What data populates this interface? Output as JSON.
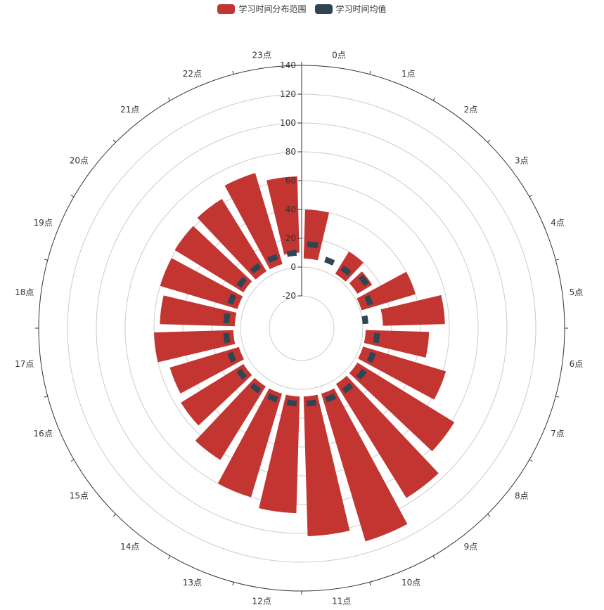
{
  "chart_data": {
    "type": "bar",
    "coordinate_system": "polar",
    "legend_position": "top-center",
    "categories": [
      "0点",
      "1点",
      "2点",
      "3点",
      "4点",
      "5点",
      "6点",
      "7点",
      "8点",
      "9点",
      "10点",
      "11点",
      "12点",
      "13点",
      "14点",
      "15点",
      "16点",
      "17点",
      "18点",
      "19点",
      "20点",
      "21点",
      "22点",
      "23点"
    ],
    "radius_axis": {
      "min": -20,
      "max": 140,
      "ticks": [
        -20,
        0,
        20,
        40,
        60,
        80,
        100,
        120,
        140
      ]
    },
    "series": [
      {
        "name": "学习时间分布范围",
        "color": "#c23531",
        "values": [
          [
            6,
            40
          ],
          [
            5,
            5
          ],
          [
            2,
            20
          ],
          [
            3,
            15
          ],
          [
            1,
            40
          ],
          [
            14,
            57
          ],
          [
            2,
            46
          ],
          [
            2,
            62
          ],
          [
            3,
            82
          ],
          [
            3,
            96
          ],
          [
            5,
            112
          ],
          [
            5,
            102
          ],
          [
            5,
            86
          ],
          [
            5,
            80
          ],
          [
            5,
            65
          ],
          [
            5,
            56
          ],
          [
            3,
            53
          ],
          [
            5,
            60
          ],
          [
            4,
            56
          ],
          [
            4,
            60
          ],
          [
            5,
            61
          ],
          [
            4,
            63
          ],
          [
            4,
            70
          ],
          [
            10,
            63
          ]
        ]
      },
      {
        "name": "学习时间均值",
        "color": "#2f4554",
        "values": [
          16,
          8,
          8,
          12,
          8,
          2,
          10,
          10,
          10,
          10,
          10,
          10,
          10,
          10,
          10,
          10,
          10,
          10,
          10,
          10,
          10,
          10,
          10,
          10
        ]
      }
    ]
  }
}
